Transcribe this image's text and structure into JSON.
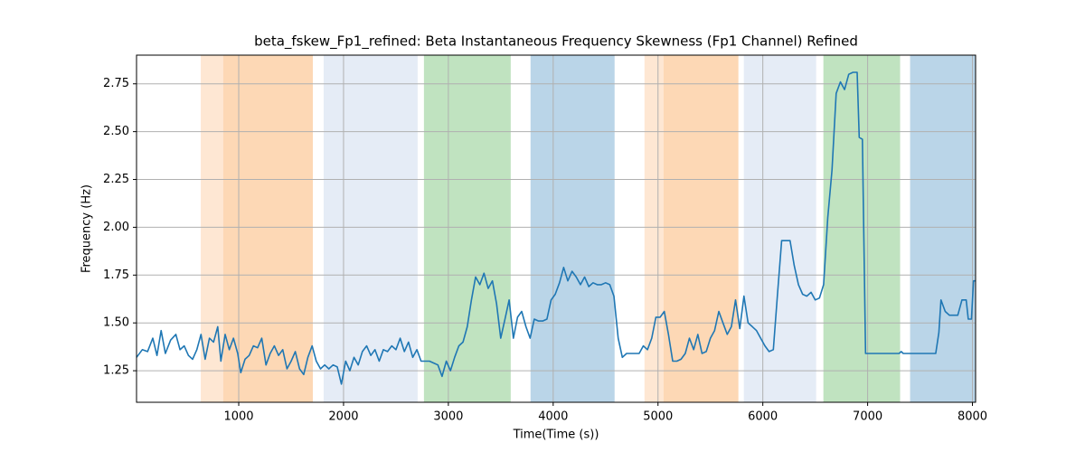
{
  "chart_data": {
    "type": "line",
    "title": "beta_fskew_Fp1_refined: Beta Instantaneous Frequency Skewness (Fp1 Channel) Refined",
    "x_label": "Time(Time (s))",
    "y_label": "Frequency (Hz)",
    "xlim": [
      25,
      8030
    ],
    "ylim": [
      1.085,
      2.9
    ],
    "xticks": [
      1000,
      2000,
      3000,
      4000,
      5000,
      6000,
      7000,
      8000
    ],
    "yticks": [
      1.25,
      {
        "value": 1.5,
        "label": "1.50"
      },
      1.75,
      {
        "value": 2.0,
        "label": "2.00"
      },
      2.25,
      {
        "value": 2.5,
        "label": "2.50"
      },
      2.75
    ],
    "grid": true,
    "spans": [
      {
        "start": 638,
        "end": 853,
        "color": "#fee7d3"
      },
      {
        "start": 853,
        "end": 1707,
        "color": "#fdd8b5"
      },
      {
        "start": 1810,
        "end": 2707,
        "color": "#e5ecf6"
      },
      {
        "start": 2767,
        "end": 3595,
        "color": "#c0e3c0"
      },
      {
        "start": 3784,
        "end": 4586,
        "color": "#bad5e8"
      },
      {
        "start": 4871,
        "end": 5052,
        "color": "#fee7d3"
      },
      {
        "start": 5052,
        "end": 5767,
        "color": "#fdd8b5"
      },
      {
        "start": 5819,
        "end": 6509,
        "color": "#e5ecf6"
      },
      {
        "start": 6578,
        "end": 7310,
        "color": "#c0e3c0"
      },
      {
        "start": 7405,
        "end": 8026,
        "color": "#bad5e8"
      }
    ],
    "series": [
      {
        "color": "#1f77b4",
        "x": [
          25,
          80,
          130,
          180,
          220,
          260,
          300,
          350,
          400,
          440,
          480,
          520,
          560,
          600,
          640,
          680,
          720,
          760,
          800,
          830,
          870,
          910,
          950,
          990,
          1020,
          1060,
          1100,
          1140,
          1180,
          1220,
          1260,
          1300,
          1340,
          1380,
          1420,
          1460,
          1500,
          1540,
          1580,
          1620,
          1660,
          1700,
          1740,
          1780,
          1820,
          1860,
          1900,
          1940,
          1980,
          2020,
          2060,
          2100,
          2140,
          2180,
          2220,
          2260,
          2300,
          2340,
          2380,
          2420,
          2460,
          2500,
          2540,
          2580,
          2620,
          2660,
          2700,
          2740,
          2780,
          2820,
          2860,
          2900,
          2940,
          2980,
          3020,
          3060,
          3100,
          3140,
          3180,
          3220,
          3260,
          3300,
          3340,
          3380,
          3420,
          3460,
          3500,
          3540,
          3580,
          3620,
          3660,
          3700,
          3740,
          3780,
          3820,
          3860,
          3900,
          3940,
          3980,
          4020,
          4060,
          4100,
          4140,
          4180,
          4220,
          4260,
          4300,
          4340,
          4380,
          4420,
          4460,
          4500,
          4540,
          4580,
          4620,
          4660,
          4700,
          4740,
          4780,
          4820,
          4860,
          4900,
          4940,
          4980,
          5020,
          5060,
          5100,
          5140,
          5180,
          5220,
          5260,
          5300,
          5340,
          5380,
          5420,
          5460,
          5500,
          5540,
          5580,
          5620,
          5660,
          5700,
          5740,
          5780,
          5820,
          5860,
          5900,
          5940,
          5980,
          6020,
          6060,
          6100,
          6140,
          6180,
          6220,
          6260,
          6300,
          6340,
          6380,
          6420,
          6460,
          6500,
          6540,
          6580,
          6620,
          6660,
          6700,
          6740,
          6780,
          6820,
          6860,
          6900,
          6920,
          6950,
          6980,
          7100,
          7300,
          7320,
          7340,
          7500,
          7650,
          7680,
          7700,
          7740,
          7780,
          7860,
          7900,
          7940,
          7960,
          7990,
          8010,
          8030
        ],
        "values": [
          1.32,
          1.36,
          1.35,
          1.42,
          1.33,
          1.46,
          1.34,
          1.41,
          1.44,
          1.36,
          1.38,
          1.33,
          1.31,
          1.36,
          1.44,
          1.31,
          1.42,
          1.4,
          1.48,
          1.3,
          1.44,
          1.36,
          1.42,
          1.34,
          1.24,
          1.31,
          1.33,
          1.38,
          1.37,
          1.42,
          1.28,
          1.34,
          1.38,
          1.33,
          1.36,
          1.26,
          1.3,
          1.35,
          1.26,
          1.23,
          1.32,
          1.38,
          1.3,
          1.26,
          1.28,
          1.26,
          1.28,
          1.27,
          1.18,
          1.3,
          1.25,
          1.32,
          1.28,
          1.35,
          1.38,
          1.33,
          1.36,
          1.3,
          1.36,
          1.35,
          1.38,
          1.36,
          1.42,
          1.35,
          1.4,
          1.32,
          1.36,
          1.3,
          1.3,
          1.3,
          1.29,
          1.28,
          1.22,
          1.3,
          1.25,
          1.32,
          1.38,
          1.4,
          1.48,
          1.62,
          1.74,
          1.7,
          1.76,
          1.68,
          1.72,
          1.6,
          1.42,
          1.52,
          1.62,
          1.42,
          1.53,
          1.56,
          1.48,
          1.42,
          1.52,
          1.51,
          1.51,
          1.52,
          1.62,
          1.65,
          1.71,
          1.79,
          1.72,
          1.77,
          1.74,
          1.7,
          1.74,
          1.69,
          1.71,
          1.7,
          1.7,
          1.71,
          1.7,
          1.64,
          1.42,
          1.32,
          1.34,
          1.34,
          1.34,
          1.34,
          1.38,
          1.36,
          1.42,
          1.53,
          1.53,
          1.56,
          1.44,
          1.3,
          1.3,
          1.31,
          1.34,
          1.42,
          1.36,
          1.44,
          1.34,
          1.35,
          1.42,
          1.46,
          1.56,
          1.5,
          1.44,
          1.48,
          1.62,
          1.47,
          1.64,
          1.5,
          1.48,
          1.46,
          1.42,
          1.38,
          1.35,
          1.36,
          1.65,
          1.93,
          1.93,
          1.93,
          1.8,
          1.7,
          1.65,
          1.64,
          1.66,
          1.62,
          1.63,
          1.7,
          2.05,
          2.3,
          2.7,
          2.76,
          2.72,
          2.8,
          2.81,
          2.81,
          2.47,
          2.46,
          1.34,
          1.34,
          1.34,
          1.35,
          1.34,
          1.34,
          1.34,
          1.45,
          1.62,
          1.56,
          1.54,
          1.54,
          1.62,
          1.62,
          1.52,
          1.52,
          1.72,
          1.72
        ]
      }
    ]
  }
}
